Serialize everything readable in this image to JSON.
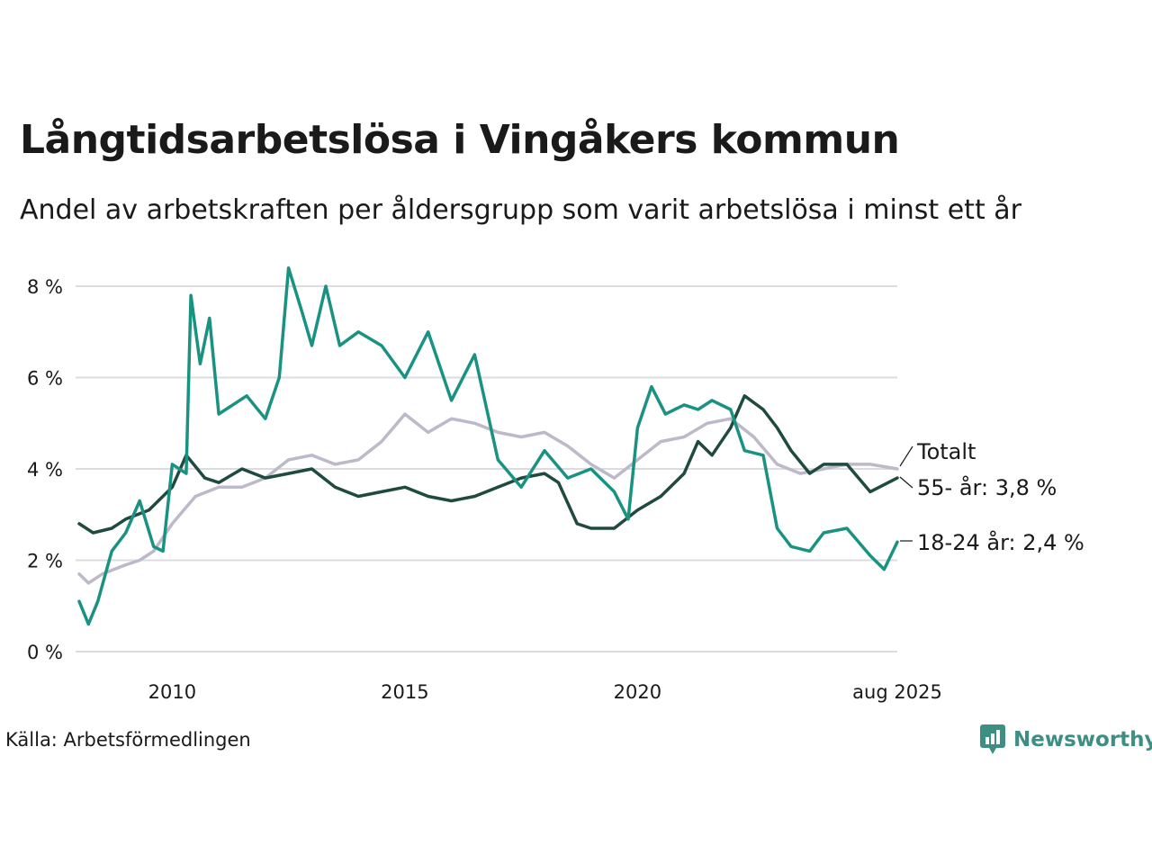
{
  "header": {
    "title": "Långtidsarbetslösa i Vingåkers kommun",
    "subtitle": "Andel av arbetskraften per åldersgrupp som varit arbetslösa i minst ett år"
  },
  "footer": {
    "source": "Källa: Arbetsförmedlingen",
    "brand": "Newsworthy"
  },
  "colors": {
    "totalt": "#bdb9c9",
    "age55": "#1f4a40",
    "age1824": "#1a9281",
    "grid": "#dcdce0",
    "brand": "#3d8e83"
  },
  "chart_data": {
    "type": "line",
    "title": "Långtidsarbetslösa i Vingåkers kommun",
    "subtitle": "Andel av arbetskraften per åldersgrupp som varit arbetslösa i minst ett år",
    "xlabel": "",
    "ylabel": "",
    "ylim": [
      0,
      8
    ],
    "xlim": [
      2008.0,
      2025.583
    ],
    "grid": "horizontal",
    "y_ticks": [
      {
        "value": 0,
        "label": "0 %"
      },
      {
        "value": 2,
        "label": "2 %"
      },
      {
        "value": 4,
        "label": "4 %"
      },
      {
        "value": 6,
        "label": "6 %"
      },
      {
        "value": 8,
        "label": "8 %"
      }
    ],
    "x_ticks": [
      {
        "value": 2010.0,
        "label": "2010"
      },
      {
        "value": 2015.0,
        "label": "2015"
      },
      {
        "value": 2020.0,
        "label": "2020"
      },
      {
        "value": 2025.583,
        "label": "aug 2025"
      }
    ],
    "series": [
      {
        "name": "Totalt",
        "end_label": "Totalt",
        "color": "#bdb9c9",
        "points": [
          [
            2008.0,
            1.7
          ],
          [
            2008.2,
            1.5
          ],
          [
            2008.5,
            1.7
          ],
          [
            2009.0,
            1.9
          ],
          [
            2009.3,
            2.0
          ],
          [
            2009.6,
            2.2
          ],
          [
            2010.0,
            2.8
          ],
          [
            2010.5,
            3.4
          ],
          [
            2011.0,
            3.6
          ],
          [
            2011.5,
            3.6
          ],
          [
            2012.0,
            3.8
          ],
          [
            2012.5,
            4.2
          ],
          [
            2013.0,
            4.3
          ],
          [
            2013.5,
            4.1
          ],
          [
            2014.0,
            4.2
          ],
          [
            2014.5,
            4.6
          ],
          [
            2015.0,
            5.2
          ],
          [
            2015.5,
            4.8
          ],
          [
            2016.0,
            5.1
          ],
          [
            2016.5,
            5.0
          ],
          [
            2017.0,
            4.8
          ],
          [
            2017.5,
            4.7
          ],
          [
            2018.0,
            4.8
          ],
          [
            2018.5,
            4.5
          ],
          [
            2019.0,
            4.1
          ],
          [
            2019.5,
            3.8
          ],
          [
            2020.0,
            4.2
          ],
          [
            2020.5,
            4.6
          ],
          [
            2021.0,
            4.7
          ],
          [
            2021.5,
            5.0
          ],
          [
            2022.0,
            5.1
          ],
          [
            2022.5,
            4.7
          ],
          [
            2023.0,
            4.1
          ],
          [
            2023.5,
            3.9
          ],
          [
            2024.0,
            4.0
          ],
          [
            2024.5,
            4.1
          ],
          [
            2025.0,
            4.1
          ],
          [
            2025.583,
            4.0
          ]
        ]
      },
      {
        "name": "55- år",
        "end_label": "55- år: 3,8 %",
        "color": "#1f4a40",
        "points": [
          [
            2008.0,
            2.8
          ],
          [
            2008.3,
            2.6
          ],
          [
            2008.7,
            2.7
          ],
          [
            2009.0,
            2.9
          ],
          [
            2009.5,
            3.1
          ],
          [
            2010.0,
            3.6
          ],
          [
            2010.3,
            4.3
          ],
          [
            2010.7,
            3.8
          ],
          [
            2011.0,
            3.7
          ],
          [
            2011.5,
            4.0
          ],
          [
            2012.0,
            3.8
          ],
          [
            2012.5,
            3.9
          ],
          [
            2013.0,
            4.0
          ],
          [
            2013.5,
            3.6
          ],
          [
            2014.0,
            3.4
          ],
          [
            2014.5,
            3.5
          ],
          [
            2015.0,
            3.6
          ],
          [
            2015.5,
            3.4
          ],
          [
            2016.0,
            3.3
          ],
          [
            2016.5,
            3.4
          ],
          [
            2017.0,
            3.6
          ],
          [
            2017.5,
            3.8
          ],
          [
            2018.0,
            3.9
          ],
          [
            2018.3,
            3.7
          ],
          [
            2018.7,
            2.8
          ],
          [
            2019.0,
            2.7
          ],
          [
            2019.5,
            2.7
          ],
          [
            2020.0,
            3.1
          ],
          [
            2020.5,
            3.4
          ],
          [
            2021.0,
            3.9
          ],
          [
            2021.3,
            4.6
          ],
          [
            2021.6,
            4.3
          ],
          [
            2022.0,
            4.9
          ],
          [
            2022.3,
            5.6
          ],
          [
            2022.7,
            5.3
          ],
          [
            2023.0,
            4.9
          ],
          [
            2023.3,
            4.4
          ],
          [
            2023.7,
            3.9
          ],
          [
            2024.0,
            4.1
          ],
          [
            2024.5,
            4.1
          ],
          [
            2025.0,
            3.5
          ],
          [
            2025.583,
            3.8
          ]
        ]
      },
      {
        "name": "18-24 år",
        "end_label": "18-24 år: 2,4 %",
        "color": "#1a9281",
        "points": [
          [
            2008.0,
            1.1
          ],
          [
            2008.2,
            0.6
          ],
          [
            2008.4,
            1.1
          ],
          [
            2008.7,
            2.2
          ],
          [
            2009.0,
            2.6
          ],
          [
            2009.3,
            3.3
          ],
          [
            2009.6,
            2.3
          ],
          [
            2009.8,
            2.2
          ],
          [
            2010.0,
            4.1
          ],
          [
            2010.3,
            3.9
          ],
          [
            2010.4,
            7.8
          ],
          [
            2010.6,
            6.3
          ],
          [
            2010.8,
            7.3
          ],
          [
            2011.0,
            5.2
          ],
          [
            2011.3,
            5.4
          ],
          [
            2011.6,
            5.6
          ],
          [
            2012.0,
            5.1
          ],
          [
            2012.3,
            6.0
          ],
          [
            2012.5,
            8.4
          ],
          [
            2012.8,
            7.4
          ],
          [
            2013.0,
            6.7
          ],
          [
            2013.3,
            8.0
          ],
          [
            2013.6,
            6.7
          ],
          [
            2014.0,
            7.0
          ],
          [
            2014.5,
            6.7
          ],
          [
            2015.0,
            6.0
          ],
          [
            2015.5,
            7.0
          ],
          [
            2016.0,
            5.5
          ],
          [
            2016.5,
            6.5
          ],
          [
            2017.0,
            4.2
          ],
          [
            2017.5,
            3.6
          ],
          [
            2018.0,
            4.4
          ],
          [
            2018.5,
            3.8
          ],
          [
            2019.0,
            4.0
          ],
          [
            2019.5,
            3.5
          ],
          [
            2019.8,
            2.9
          ],
          [
            2020.0,
            4.9
          ],
          [
            2020.3,
            5.8
          ],
          [
            2020.6,
            5.2
          ],
          [
            2021.0,
            5.4
          ],
          [
            2021.3,
            5.3
          ],
          [
            2021.6,
            5.5
          ],
          [
            2022.0,
            5.3
          ],
          [
            2022.3,
            4.4
          ],
          [
            2022.7,
            4.3
          ],
          [
            2023.0,
            2.7
          ],
          [
            2023.3,
            2.3
          ],
          [
            2023.7,
            2.2
          ],
          [
            2024.0,
            2.6
          ],
          [
            2024.5,
            2.7
          ],
          [
            2025.0,
            2.1
          ],
          [
            2025.3,
            1.8
          ],
          [
            2025.583,
            2.4
          ]
        ]
      }
    ]
  }
}
